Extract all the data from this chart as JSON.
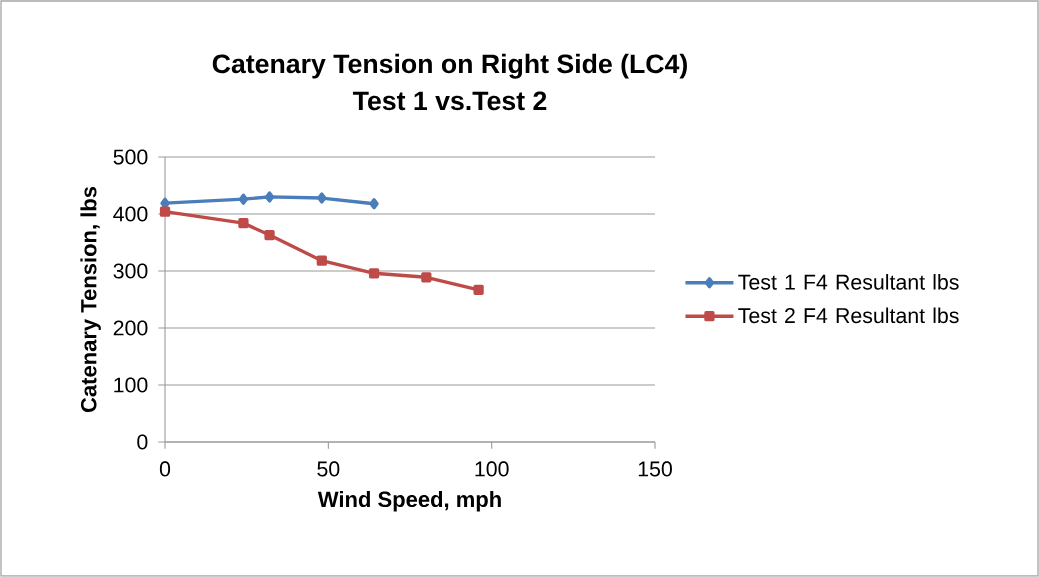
{
  "chart_data": {
    "type": "line",
    "title": "Catenary Tension on Right Side (LC4)\nTest 1 vs.Test 2",
    "xlabel": "Wind Speed, mph",
    "ylabel": "Catenary Tension, lbs",
    "xlim": [
      0,
      150
    ],
    "xticks": [
      0,
      50,
      100,
      150
    ],
    "ylim": [
      0,
      500
    ],
    "yticks": [
      0,
      100,
      200,
      300,
      400,
      500
    ],
    "grid": "y",
    "legend": "right",
    "series": [
      {
        "name": "Test 1 F4 Resultant lbs",
        "color": "#4a7ebb",
        "marker": "diamond",
        "x": [
          0,
          24,
          32,
          48,
          64
        ],
        "values": [
          419,
          426,
          430,
          428,
          418
        ]
      },
      {
        "name": "Test 2 F4 Resultant lbs",
        "color": "#be4b48",
        "marker": "square",
        "x": [
          0,
          24,
          32,
          48,
          64,
          80,
          96
        ],
        "values": [
          404,
          384,
          363,
          318,
          296,
          289,
          267
        ]
      }
    ]
  }
}
